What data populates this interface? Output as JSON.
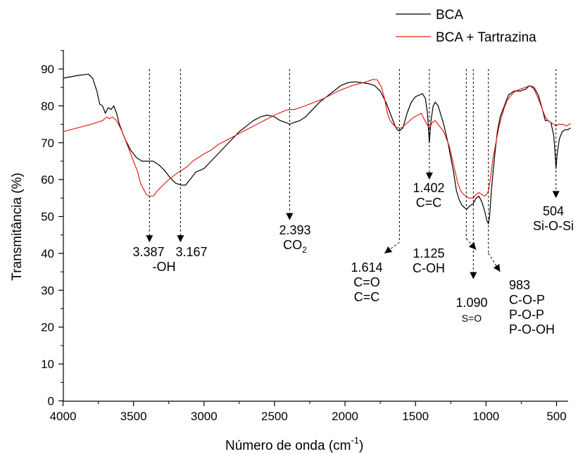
{
  "chart_data": {
    "type": "line",
    "title": "",
    "xlabel": "Número de onda (cm",
    "xlabel_sup": "-1",
    "xlabel_suffix": ")",
    "ylabel": "Transmitância (%)",
    "xlim": [
      4000,
      400
    ],
    "x_reversed": true,
    "ylim": [
      0,
      95
    ],
    "xticks": [
      4000,
      3500,
      3000,
      2500,
      2000,
      1500,
      1000,
      500
    ],
    "yticks": [
      0,
      10,
      20,
      30,
      40,
      50,
      60,
      70,
      80,
      90
    ],
    "grid": false,
    "legend_position": "top-right",
    "series": [
      {
        "name": "BCA",
        "color": "#000000",
        "points": [
          [
            4000,
            87.5
          ],
          [
            3900,
            88.2
          ],
          [
            3820,
            88.6
          ],
          [
            3790,
            87.5
          ],
          [
            3760,
            84
          ],
          [
            3740,
            80.5
          ],
          [
            3720,
            80
          ],
          [
            3700,
            78
          ],
          [
            3680,
            79.5
          ],
          [
            3660,
            79
          ],
          [
            3640,
            80
          ],
          [
            3620,
            78
          ],
          [
            3600,
            75
          ],
          [
            3560,
            71
          ],
          [
            3520,
            68
          ],
          [
            3480,
            66
          ],
          [
            3440,
            65
          ],
          [
            3400,
            65
          ],
          [
            3360,
            65
          ],
          [
            3320,
            64
          ],
          [
            3280,
            62.5
          ],
          [
            3240,
            60.5
          ],
          [
            3200,
            59
          ],
          [
            3160,
            58.5
          ],
          [
            3130,
            58.5
          ],
          [
            3100,
            60
          ],
          [
            3060,
            62
          ],
          [
            3000,
            63
          ],
          [
            2950,
            65
          ],
          [
            2900,
            67
          ],
          [
            2850,
            69
          ],
          [
            2800,
            71
          ],
          [
            2750,
            73
          ],
          [
            2700,
            74.5
          ],
          [
            2650,
            76
          ],
          [
            2600,
            77
          ],
          [
            2550,
            77.5
          ],
          [
            2500,
            77
          ],
          [
            2460,
            76
          ],
          [
            2420,
            75.5
          ],
          [
            2393,
            75
          ],
          [
            2360,
            75.5
          ],
          [
            2320,
            76
          ],
          [
            2280,
            77
          ],
          [
            2230,
            79
          ],
          [
            2180,
            81
          ],
          [
            2130,
            82.5
          ],
          [
            2080,
            84
          ],
          [
            2030,
            85.5
          ],
          [
            1980,
            86.3
          ],
          [
            1930,
            86.5
          ],
          [
            1880,
            86.3
          ],
          [
            1830,
            86
          ],
          [
            1790,
            85.5
          ],
          [
            1750,
            84
          ],
          [
            1710,
            81
          ],
          [
            1680,
            78
          ],
          [
            1650,
            75
          ],
          [
            1630,
            73.5
          ],
          [
            1614,
            73.2
          ],
          [
            1590,
            74
          ],
          [
            1560,
            78
          ],
          [
            1530,
            81
          ],
          [
            1500,
            82.5
          ],
          [
            1470,
            83
          ],
          [
            1450,
            83.3
          ],
          [
            1430,
            82
          ],
          [
            1415,
            78
          ],
          [
            1402,
            70
          ],
          [
            1390,
            76
          ],
          [
            1375,
            80
          ],
          [
            1360,
            81
          ],
          [
            1340,
            80
          ],
          [
            1300,
            75
          ],
          [
            1270,
            70
          ],
          [
            1250,
            66
          ],
          [
            1230,
            62
          ],
          [
            1210,
            57
          ],
          [
            1190,
            54.5
          ],
          [
            1170,
            53
          ],
          [
            1150,
            52.3
          ],
          [
            1135,
            52
          ],
          [
            1125,
            52.5
          ],
          [
            1110,
            53
          ],
          [
            1090,
            53.5
          ],
          [
            1070,
            55
          ],
          [
            1050,
            55.5
          ],
          [
            1030,
            54
          ],
          [
            1010,
            51.5
          ],
          [
            995,
            49
          ],
          [
            983,
            48
          ],
          [
            975,
            50
          ],
          [
            960,
            58
          ],
          [
            940,
            66
          ],
          [
            920,
            73
          ],
          [
            900,
            77
          ],
          [
            880,
            79
          ],
          [
            860,
            81
          ],
          [
            840,
            83
          ],
          [
            800,
            84
          ],
          [
            760,
            84
          ],
          [
            720,
            84.5
          ],
          [
            690,
            85.5
          ],
          [
            660,
            85
          ],
          [
            630,
            83
          ],
          [
            600,
            79
          ],
          [
            580,
            76
          ],
          [
            560,
            76
          ],
          [
            540,
            75.5
          ],
          [
            520,
            72
          ],
          [
            510,
            67
          ],
          [
            504,
            63
          ],
          [
            495,
            67
          ],
          [
            480,
            71
          ],
          [
            460,
            73
          ],
          [
            440,
            73.5
          ],
          [
            420,
            73.5
          ],
          [
            400,
            74
          ]
        ]
      },
      {
        "name": "BCA + Tartrazina",
        "color": "#e8211a",
        "points": [
          [
            4000,
            73
          ],
          [
            3900,
            74
          ],
          [
            3800,
            75
          ],
          [
            3720,
            76
          ],
          [
            3690,
            77
          ],
          [
            3670,
            76.5
          ],
          [
            3650,
            77
          ],
          [
            3620,
            76
          ],
          [
            3580,
            73
          ],
          [
            3540,
            69
          ],
          [
            3500,
            65
          ],
          [
            3470,
            62
          ],
          [
            3450,
            59
          ],
          [
            3430,
            57.5
          ],
          [
            3410,
            56
          ],
          [
            3387,
            55.5
          ],
          [
            3360,
            55.5
          ],
          [
            3330,
            57
          ],
          [
            3290,
            58.5
          ],
          [
            3250,
            60
          ],
          [
            3200,
            61.5
          ],
          [
            3160,
            62.5
          ],
          [
            3120,
            63.5
          ],
          [
            3080,
            65
          ],
          [
            3040,
            66
          ],
          [
            3000,
            67
          ],
          [
            2950,
            68
          ],
          [
            2900,
            69.5
          ],
          [
            2850,
            70.5
          ],
          [
            2800,
            71.5
          ],
          [
            2700,
            73.5
          ],
          [
            2600,
            75.5
          ],
          [
            2500,
            77.5
          ],
          [
            2420,
            78.8
          ],
          [
            2393,
            79
          ],
          [
            2360,
            79
          ],
          [
            2320,
            79.5
          ],
          [
            2250,
            80.5
          ],
          [
            2150,
            82
          ],
          [
            2050,
            84
          ],
          [
            1950,
            85.5
          ],
          [
            1850,
            86.5
          ],
          [
            1800,
            87.2
          ],
          [
            1770,
            87
          ],
          [
            1740,
            85
          ],
          [
            1720,
            82
          ],
          [
            1700,
            78
          ],
          [
            1680,
            76
          ],
          [
            1660,
            75
          ],
          [
            1640,
            74.3
          ],
          [
            1620,
            74
          ],
          [
            1600,
            74
          ],
          [
            1570,
            75
          ],
          [
            1540,
            76
          ],
          [
            1510,
            77
          ],
          [
            1480,
            77.5
          ],
          [
            1460,
            78
          ],
          [
            1440,
            76.5
          ],
          [
            1420,
            75
          ],
          [
            1402,
            74
          ],
          [
            1380,
            75.5
          ],
          [
            1360,
            76
          ],
          [
            1340,
            75
          ],
          [
            1300,
            73
          ],
          [
            1260,
            69
          ],
          [
            1230,
            64
          ],
          [
            1200,
            59
          ],
          [
            1180,
            57
          ],
          [
            1160,
            56
          ],
          [
            1140,
            55.5
          ],
          [
            1125,
            55
          ],
          [
            1110,
            55
          ],
          [
            1090,
            55
          ],
          [
            1070,
            56
          ],
          [
            1050,
            56.5
          ],
          [
            1030,
            56
          ],
          [
            1010,
            55.5
          ],
          [
            995,
            56
          ],
          [
            983,
            57
          ],
          [
            970,
            60
          ],
          [
            950,
            66
          ],
          [
            930,
            70
          ],
          [
            910,
            74
          ],
          [
            890,
            77
          ],
          [
            870,
            79.5
          ],
          [
            850,
            81.5
          ],
          [
            820,
            83
          ],
          [
            790,
            84
          ],
          [
            760,
            84.5
          ],
          [
            720,
            85
          ],
          [
            690,
            85.5
          ],
          [
            660,
            84.5
          ],
          [
            630,
            82
          ],
          [
            600,
            79
          ],
          [
            580,
            77
          ],
          [
            560,
            76
          ],
          [
            540,
            75.5
          ],
          [
            520,
            75
          ],
          [
            504,
            74.5
          ],
          [
            490,
            75
          ],
          [
            470,
            75
          ],
          [
            450,
            75
          ],
          [
            430,
            74.5
          ],
          [
            410,
            75
          ],
          [
            400,
            75.2
          ]
        ]
      }
    ],
    "annotations": [
      {
        "x": 3387,
        "y_from": 90,
        "y_to": 43,
        "lines": [
          "3.387",
          "-OH"
        ],
        "text_style": "normal"
      },
      {
        "x": 3167,
        "y_from": 90,
        "y_to": 43,
        "lines": [
          "3.167"
        ],
        "text_style": "normal"
      },
      {
        "x": 2393,
        "y_from": 90,
        "y_to": 49,
        "lines": [
          "2.393",
          "CO"
        ],
        "sub": "2",
        "text_style": "normal"
      },
      {
        "x": 1614,
        "y_from": 90,
        "y_to": 43,
        "diagonal_to": [
          1720,
          40
        ],
        "lines": [
          "1.614",
          "C=O",
          "C=C"
        ],
        "text_style": "normal"
      },
      {
        "x": 1402,
        "y_from": 90,
        "y_to": 60,
        "lines": [
          "1.402",
          "C=C"
        ],
        "text_style": "normal"
      },
      {
        "x": 1140,
        "y_from": 90,
        "y_to": 44,
        "diagonal_to": [
          1070,
          41
        ],
        "lines": [
          "1.125",
          "C-OH"
        ],
        "text_style": "normal"
      },
      {
        "x": 1090,
        "y_from": 90,
        "y_to": 33,
        "lines": [
          "1.090",
          "S=O"
        ],
        "text_style": "small_second"
      },
      {
        "x": 983,
        "y_from": 90,
        "y_to": 40,
        "diagonal_to": [
          900,
          35
        ],
        "lines": [
          "983",
          "C-O-P",
          "P-O-P",
          "P-O-OH"
        ],
        "text_style": "normal"
      },
      {
        "x": 504,
        "y_from": 90,
        "y_to": 55,
        "lines": [
          "504",
          "Si-O-Si"
        ],
        "text_style": "normal"
      }
    ]
  }
}
